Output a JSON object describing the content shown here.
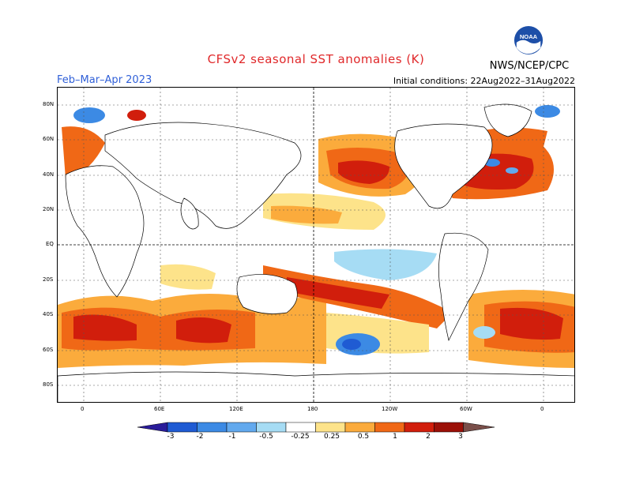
{
  "title": "CFSv2 seasonal SST anomalies (K)",
  "season": "Feb–Mar–Apr 2023",
  "initial_conditions": "Initial conditions: 22Aug2022–31Aug2022",
  "agency": "NWS/NCEP/CPC",
  "logo_text": "NOAA",
  "lat_labels": [
    "80N",
    "60N",
    "40N",
    "20N",
    "EQ",
    "20S",
    "40S",
    "60S",
    "80S"
  ],
  "lon_labels": [
    "0",
    "60E",
    "120E",
    "180",
    "120W",
    "60W",
    "0"
  ],
  "colorbar": {
    "tick_labels": [
      "-3",
      "-2",
      "-1",
      "-0.5",
      "-0.25",
      "0.25",
      "0.5",
      "1",
      "2",
      "3"
    ],
    "colors": [
      "#2a1c9a",
      "#1f5bd3",
      "#3c8ae4",
      "#62a9ee",
      "#a6dcf4",
      "#ffffff",
      "#fde38a",
      "#fbab3c",
      "#f06816",
      "#d11e0c",
      "#9b1008",
      "#7a4f4a"
    ]
  }
}
